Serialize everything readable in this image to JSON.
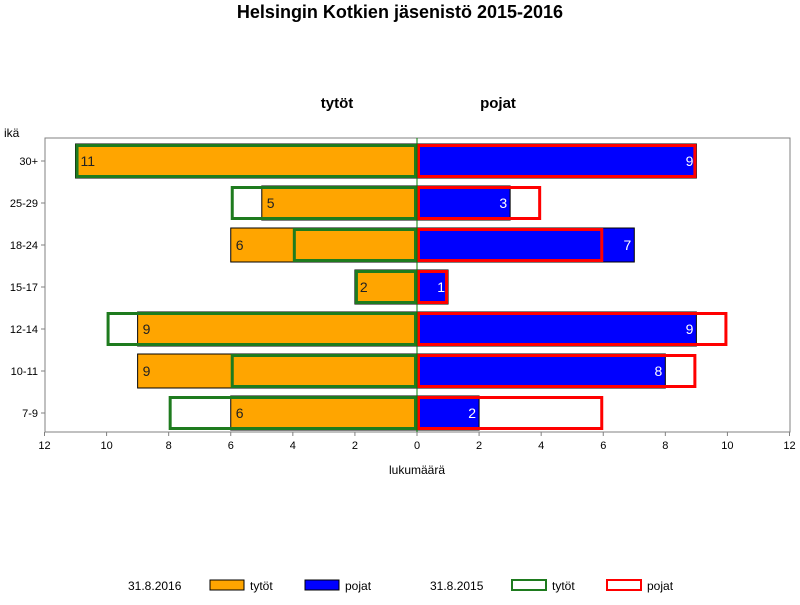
{
  "chart_data": {
    "type": "bar",
    "title": "Helsingin Kotkien jäsenistö 2015-2016",
    "left_header": "tytöt",
    "right_header": "pojat",
    "ylabel": "ikä",
    "xlabel": "lukumäärä",
    "xlim": [
      -12,
      12
    ],
    "x_ticks": [
      -12,
      -10,
      -8,
      -6,
      -4,
      -2,
      0,
      2,
      4,
      6,
      8,
      10,
      12
    ],
    "x_tick_labels": [
      "12",
      "10",
      "8",
      "6",
      "4",
      "2",
      "0",
      "2",
      "4",
      "6",
      "8",
      "10",
      "12"
    ],
    "categories": [
      "30+",
      "25-29",
      "18-24",
      "15-17",
      "12-14",
      "10-11",
      "7-9"
    ],
    "series": [
      {
        "name": "tytöt",
        "date": "31.8.2016",
        "side": "left",
        "style": "filled",
        "color": "#FFA500",
        "values": [
          11,
          5,
          6,
          2,
          9,
          9,
          6
        ]
      },
      {
        "name": "pojat",
        "date": "31.8.2016",
        "side": "right",
        "style": "filled",
        "color": "#0000FF",
        "values": [
          9,
          3,
          7,
          1,
          9,
          8,
          2
        ]
      },
      {
        "name": "tytöt",
        "date": "31.8.2015",
        "side": "left",
        "style": "outline",
        "color": "#1E7B1E",
        "values": [
          11,
          6,
          4,
          2,
          10,
          6,
          8
        ]
      },
      {
        "name": "pojat",
        "date": "31.8.2015",
        "side": "right",
        "style": "outline",
        "color": "#FF0000",
        "values": [
          9,
          4,
          6,
          1,
          10,
          9,
          6
        ]
      }
    ],
    "data_labels": {
      "tytöt": [
        "11",
        "5",
        "6",
        "2",
        "9",
        "9",
        "6"
      ],
      "pojat": [
        "9",
        "3",
        "7",
        "1",
        "9",
        "8",
        "2"
      ]
    },
    "legend": {
      "placement": "bottom",
      "groups": [
        {
          "date": "31.8.2016",
          "items": [
            {
              "label": "tytöt",
              "color": "#FFA500",
              "style": "filled"
            },
            {
              "label": "pojat",
              "color": "#0000FF",
              "style": "filled"
            }
          ]
        },
        {
          "date": "31.8.2015",
          "items": [
            {
              "label": "tytöt",
              "color": "#1E7B1E",
              "style": "outline"
            },
            {
              "label": "pojat",
              "color": "#FF0000",
              "style": "outline"
            }
          ]
        }
      ]
    },
    "grid": false,
    "colors": {
      "frame": "#808080",
      "text": "#000000",
      "zero_line": "#008000"
    }
  }
}
